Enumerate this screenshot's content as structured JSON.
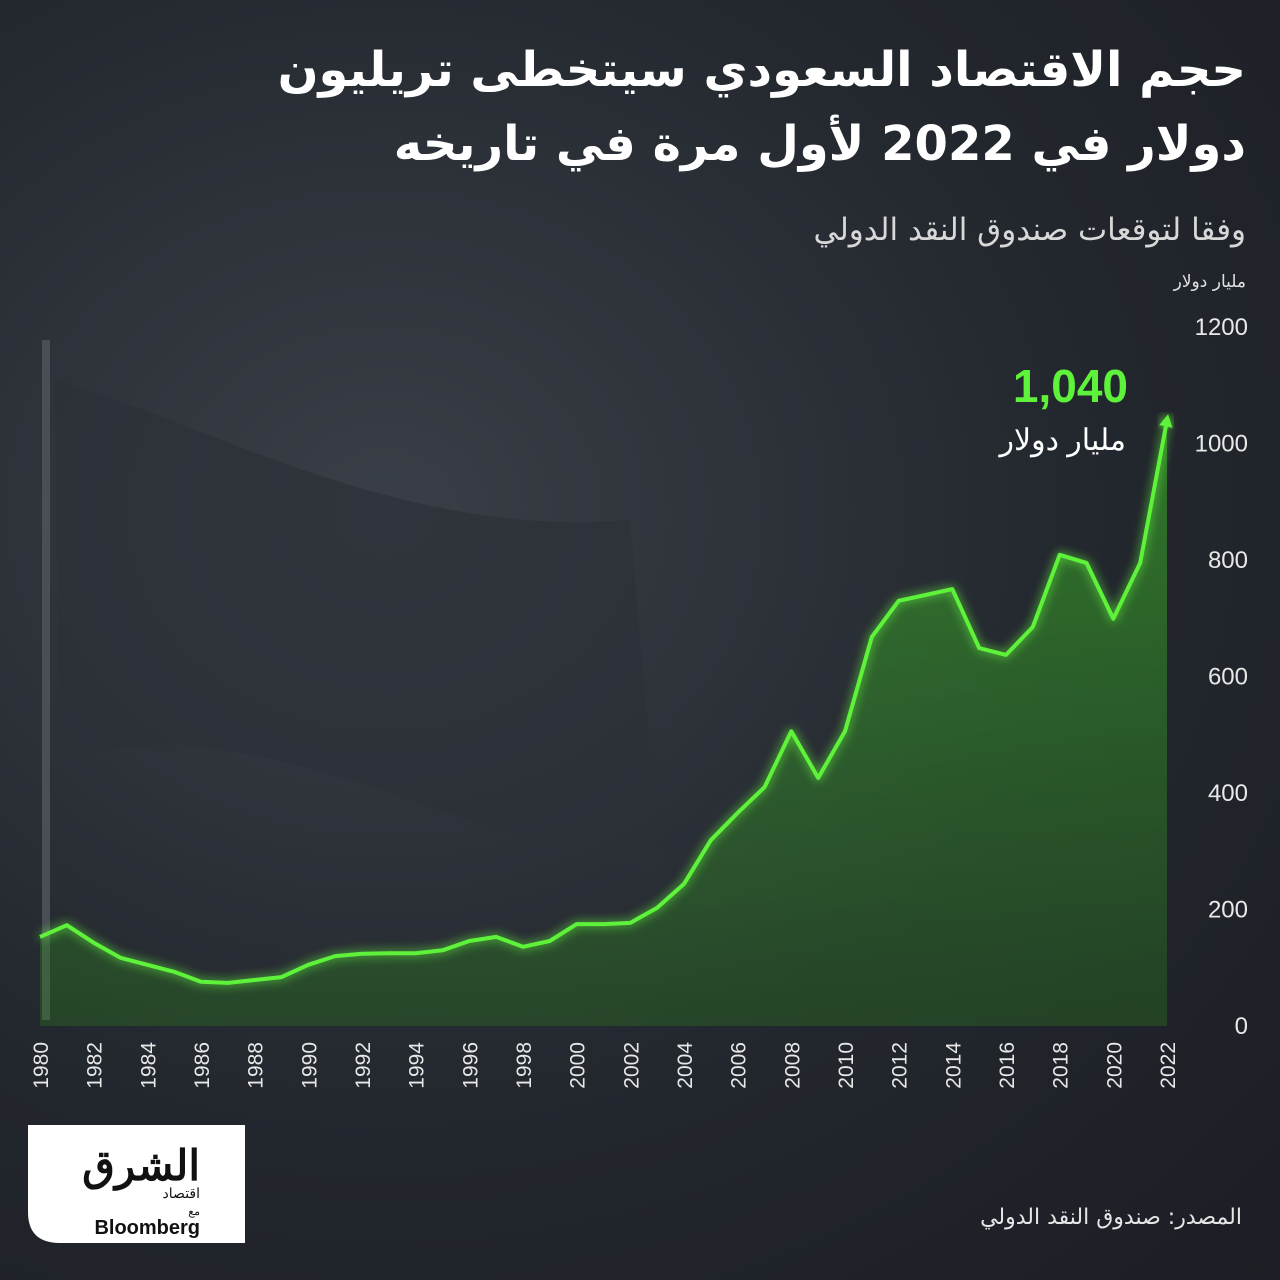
{
  "chart_data": {
    "type": "area",
    "title_lines": [
      "حجم الاقتصاد السعودي سيتخطى تريليون",
      "دولار في 2022  لأول مرة في تاريخه"
    ],
    "subtitle": "وفقا لتوقعات صندوق النقد الدولي",
    "y_unit": "مليار دولار",
    "x": [
      1980,
      1981,
      1982,
      1983,
      1984,
      1985,
      1986,
      1987,
      1988,
      1989,
      1990,
      1991,
      1992,
      1993,
      1994,
      1995,
      1996,
      1997,
      1998,
      1999,
      2000,
      2001,
      2002,
      2003,
      2004,
      2005,
      2006,
      2007,
      2008,
      2009,
      2010,
      2011,
      2012,
      2013,
      2014,
      2015,
      2016,
      2017,
      2018,
      2019,
      2020,
      2021,
      2022
    ],
    "values": [
      153,
      173,
      143,
      117,
      105,
      93,
      76,
      74,
      79,
      84,
      105,
      120,
      124,
      125,
      125,
      130,
      146,
      153,
      136,
      146,
      175,
      175,
      177,
      203,
      244,
      319,
      366,
      410,
      506,
      426,
      506,
      668,
      730,
      740,
      750,
      649,
      637,
      685,
      809,
      795,
      699,
      795,
      1040
    ],
    "color": "#5ff23a",
    "xlim": [
      1980,
      2022
    ],
    "xticks": [
      1980,
      1982,
      1984,
      1986,
      1988,
      1990,
      1992,
      1994,
      1996,
      1998,
      2000,
      2002,
      2004,
      2006,
      2008,
      2010,
      2012,
      2014,
      2016,
      2018,
      2020,
      2022
    ],
    "ylim": [
      0,
      1200
    ],
    "yticks": [
      0,
      200,
      400,
      600,
      800,
      1000,
      1200
    ],
    "annotation": {
      "value_label": "1,040",
      "unit": "مليار دولار"
    },
    "source": "المصدر: صندوق النقد الدولي"
  },
  "logo": {
    "name": "الشرق",
    "section": "اقتصاد",
    "with": "مع",
    "partner": "Bloomberg"
  }
}
